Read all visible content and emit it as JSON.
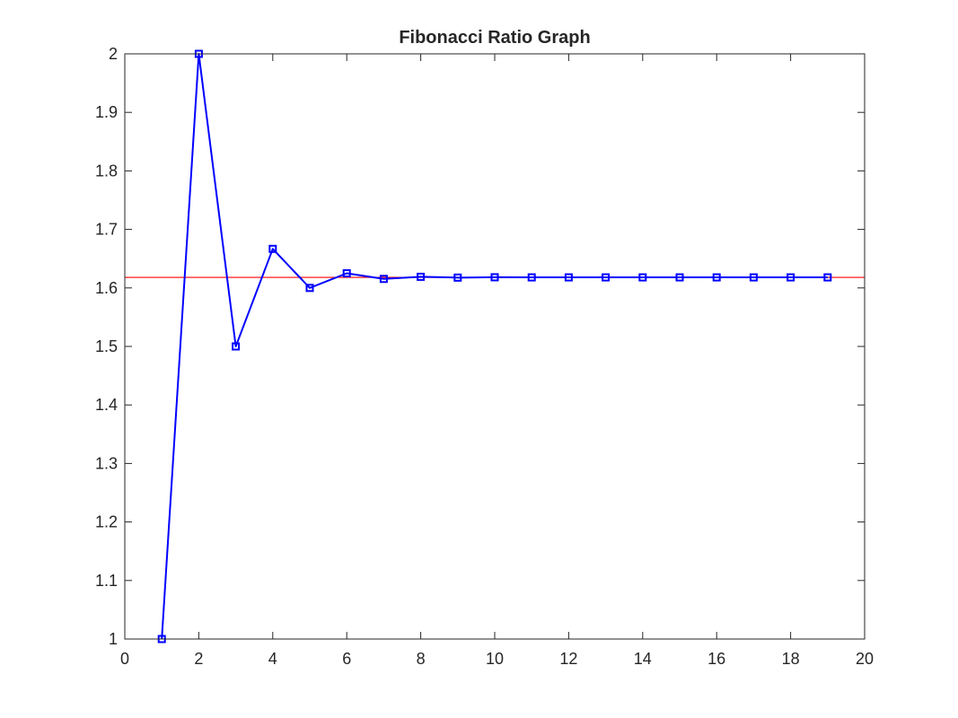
{
  "chart_data": {
    "type": "line",
    "title": "Fibonacci Ratio Graph",
    "xlabel": "",
    "ylabel": "",
    "xlim": [
      0,
      20
    ],
    "ylim": [
      1,
      2
    ],
    "xticks": [
      0,
      2,
      4,
      6,
      8,
      10,
      12,
      14,
      16,
      18,
      20
    ],
    "yticks": [
      1,
      1.1,
      1.2,
      1.3,
      1.4,
      1.5,
      1.6,
      1.7,
      1.8,
      1.9,
      2
    ],
    "xtick_labels": [
      "0",
      "2",
      "4",
      "6",
      "8",
      "10",
      "12",
      "14",
      "16",
      "18",
      "20"
    ],
    "ytick_labels": [
      "1",
      "1.1",
      "1.2",
      "1.3",
      "1.4",
      "1.5",
      "1.6",
      "1.7",
      "1.8",
      "1.9",
      "2"
    ],
    "grid": false,
    "legend": "none",
    "series": [
      {
        "color": "#0000ff",
        "marker": "square",
        "x": [
          1,
          2,
          3,
          4,
          5,
          6,
          7,
          8,
          9,
          10,
          11,
          12,
          13,
          14,
          15,
          16,
          17,
          18,
          19
        ],
        "y": [
          1,
          2,
          1.5,
          1.6667,
          1.6,
          1.625,
          1.6154,
          1.619,
          1.6176,
          1.6182,
          1.618,
          1.618,
          1.618,
          1.618,
          1.618,
          1.618,
          1.618,
          1.618,
          1.618
        ]
      }
    ],
    "reference_lines": [
      {
        "orientation": "horizontal",
        "y": 1.618,
        "color": "#ff0000"
      }
    ]
  }
}
